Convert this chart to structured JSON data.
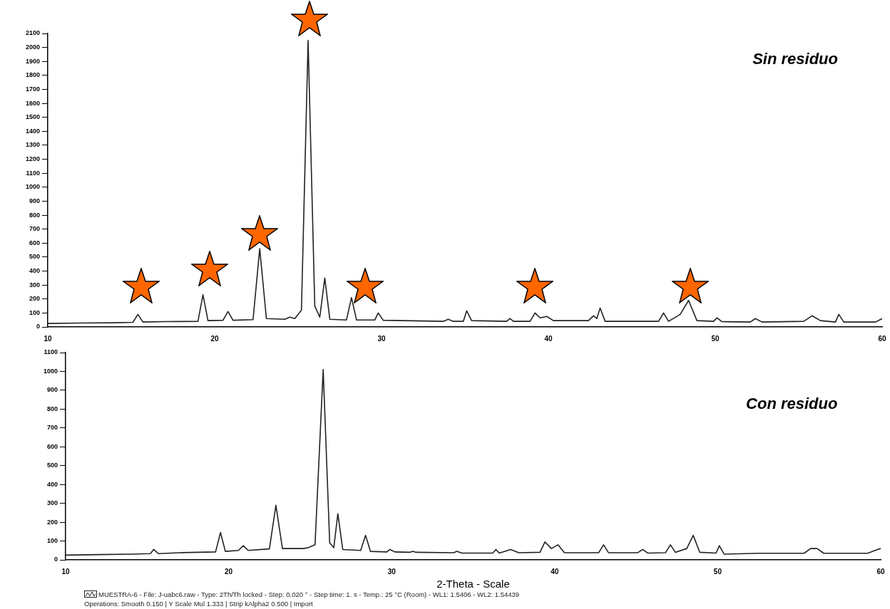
{
  "chart_data": [
    {
      "type": "line",
      "title": "Sin residuo",
      "xlim": [
        10,
        60
      ],
      "xticks": [
        10,
        20,
        30,
        40,
        50,
        60
      ],
      "ylim": [
        0,
        2100
      ],
      "yticks": [
        0,
        100,
        200,
        300,
        400,
        500,
        600,
        700,
        800,
        900,
        1000,
        1100,
        1200,
        1300,
        1400,
        1500,
        1600,
        1700,
        1800,
        1900,
        2000,
        2100
      ],
      "grid": false,
      "legend": false,
      "marker": "none",
      "line_style": "solid",
      "series": [
        {
          "color": "#222222",
          "x": [
            10,
            12,
            14,
            15.1,
            15.4,
            15.7,
            17,
            19,
            19.3,
            19.6,
            20.5,
            20.8,
            21.1,
            22.3,
            22.7,
            23.1,
            24.2,
            24.5,
            24.8,
            25.2,
            25.6,
            26.0,
            26.3,
            26.6,
            26.9,
            27.9,
            28.2,
            28.5,
            29.6,
            29.8,
            30.1,
            33.7,
            34,
            34.3,
            34.9,
            35.1,
            35.4,
            37.5,
            37.7,
            37.9,
            38.9,
            39.2,
            39.5,
            39.9,
            40.3,
            42.4,
            42.7,
            42.9,
            43.1,
            43.4,
            46.6,
            46.9,
            47.2,
            47.9,
            48.4,
            48.9,
            49.9,
            50.1,
            50.4,
            52.1,
            52.4,
            52.8,
            55.3,
            55.8,
            56.3,
            57.2,
            57.4,
            57.7,
            59.6,
            60
          ],
          "values": [
            25,
            28,
            30,
            33,
            90,
            35,
            38,
            40,
            230,
            45,
            48,
            110,
            48,
            52,
            560,
            60,
            55,
            70,
            60,
            120,
            2050,
            150,
            70,
            350,
            55,
            50,
            210,
            50,
            50,
            100,
            48,
            40,
            55,
            40,
            40,
            115,
            45,
            40,
            60,
            40,
            40,
            100,
            65,
            75,
            45,
            45,
            80,
            60,
            135,
            40,
            40,
            100,
            40,
            90,
            190,
            45,
            40,
            65,
            38,
            35,
            60,
            35,
            40,
            80,
            45,
            35,
            90,
            35,
            35,
            60
          ]
        }
      ]
    },
    {
      "type": "line",
      "title": "Con residuo",
      "xlabel": "2-Theta - Scale",
      "xlim": [
        10,
        60
      ],
      "xticks": [
        10,
        20,
        30,
        40,
        50,
        60
      ],
      "ylim": [
        0,
        1100
      ],
      "yticks": [
        0,
        100,
        200,
        300,
        400,
        500,
        600,
        700,
        800,
        900,
        1000,
        1100
      ],
      "grid": false,
      "legend": false,
      "marker": "none",
      "line_style": "solid",
      "annotations": [
        "MUESTRA-6 - File: J-uabc6.raw - Type: 2Th/Th locked - Step: 0.020 ° - Step time: 1. s - Temp.: 25 °C (Room) - WL1: 1.5406 - WL2: 1.54439",
        "Operations: Smooth 0.150 | Y Scale Mul  1.333 | Strip kAlpha2 0.500 | Import"
      ],
      "series": [
        {
          "color": "#222222",
          "x": [
            10,
            12,
            14,
            15.2,
            15.4,
            15.7,
            17,
            19.2,
            19.5,
            19.8,
            20.6,
            20.9,
            21.2,
            22.5,
            22.9,
            23.3,
            24.6,
            24.9,
            25.3,
            25.8,
            26.2,
            26.45,
            26.7,
            27.0,
            28.1,
            28.4,
            28.7,
            29.7,
            29.9,
            30.2,
            31.1,
            31.3,
            31.5,
            33.8,
            34,
            34.3,
            36.2,
            36.4,
            36.6,
            37.3,
            37.8,
            39.1,
            39.4,
            39.8,
            40.2,
            40.6,
            42.7,
            43.0,
            43.3,
            45.1,
            45.4,
            45.7,
            46.8,
            47.1,
            47.4,
            48.1,
            48.5,
            48.9,
            49.9,
            50.1,
            50.4,
            52.5,
            55.3,
            55.7,
            56.1,
            56.5,
            59.2,
            59.8,
            60
          ],
          "values": [
            25,
            28,
            30,
            33,
            55,
            33,
            38,
            42,
            145,
            45,
            50,
            75,
            50,
            58,
            290,
            60,
            60,
            65,
            80,
            1010,
            90,
            65,
            245,
            55,
            50,
            130,
            45,
            42,
            55,
            42,
            40,
            45,
            40,
            38,
            45,
            36,
            36,
            55,
            36,
            55,
            38,
            40,
            95,
            60,
            80,
            38,
            38,
            80,
            38,
            38,
            55,
            36,
            38,
            80,
            40,
            60,
            130,
            40,
            36,
            75,
            30,
            35,
            35,
            60,
            60,
            35,
            35,
            55,
            60
          ]
        }
      ]
    }
  ]
}
